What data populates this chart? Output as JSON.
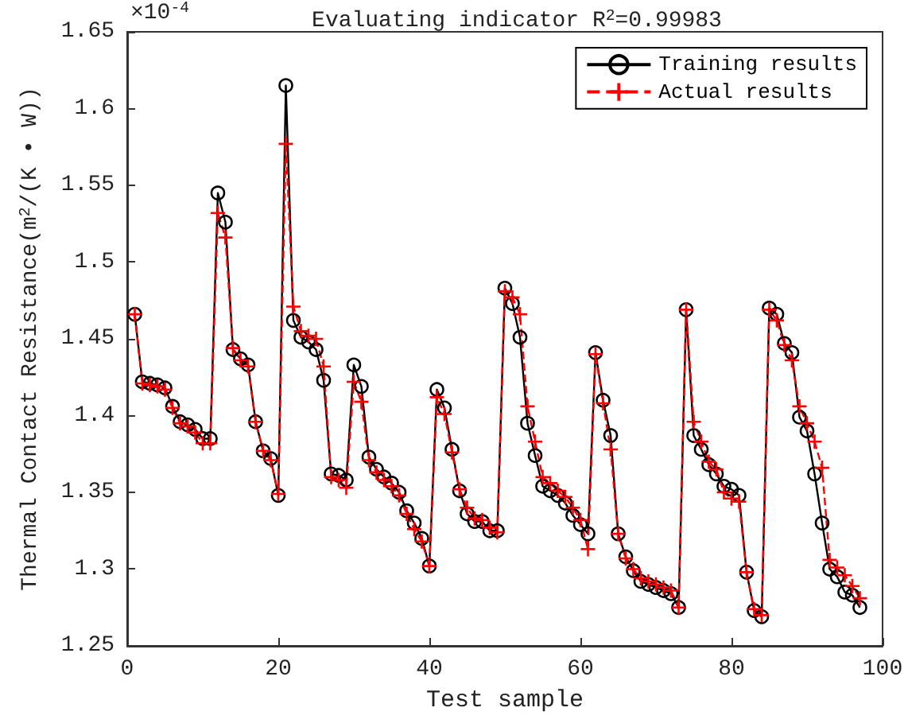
{
  "chart_data": {
    "type": "line",
    "title": "Evaluating indicator R$^{2}$=0.99983",
    "xlabel": "Test sample",
    "ylabel": "Thermal Contact Resistance(m$^{2}$/(K • W))",
    "annotations": [
      "×10$^{-4}$"
    ],
    "x": [
      1,
      2,
      3,
      4,
      5,
      6,
      7,
      8,
      9,
      10,
      11,
      12,
      13,
      14,
      15,
      16,
      17,
      18,
      19,
      20,
      21,
      22,
      23,
      24,
      25,
      26,
      27,
      28,
      29,
      30,
      31,
      32,
      33,
      34,
      35,
      36,
      37,
      38,
      39,
      40,
      41,
      42,
      43,
      44,
      45,
      46,
      47,
      48,
      49,
      50,
      51,
      52,
      53,
      54,
      55,
      56,
      57,
      58,
      59,
      60,
      61,
      62,
      63,
      64,
      65,
      66,
      67,
      68,
      69,
      70,
      71,
      72,
      73,
      74,
      75,
      76,
      77,
      78,
      79,
      80,
      81,
      82,
      83,
      84,
      85,
      86,
      87,
      88,
      89,
      90,
      91,
      92,
      93,
      94,
      95,
      96,
      97
    ],
    "series": [
      {
        "name": "Training results",
        "color": "#000000",
        "marker": "circle",
        "line_style": "solid",
        "values": [
          1.466,
          1.422,
          1.421,
          1.42,
          1.418,
          1.406,
          1.396,
          1.394,
          1.391,
          1.385,
          1.385,
          1.545,
          1.526,
          1.443,
          1.437,
          1.433,
          1.396,
          1.377,
          1.372,
          1.348,
          1.615,
          1.462,
          1.451,
          1.448,
          1.443,
          1.423,
          1.362,
          1.361,
          1.358,
          1.433,
          1.419,
          1.373,
          1.365,
          1.36,
          1.356,
          1.35,
          1.338,
          1.33,
          1.32,
          1.302,
          1.417,
          1.405,
          1.378,
          1.351,
          1.336,
          1.331,
          1.331,
          1.325,
          1.325,
          1.483,
          1.473,
          1.451,
          1.395,
          1.374,
          1.354,
          1.351,
          1.348,
          1.343,
          1.335,
          1.329,
          1.323,
          1.441,
          1.41,
          1.387,
          1.323,
          1.308,
          1.299,
          1.292,
          1.29,
          1.288,
          1.286,
          1.284,
          1.275,
          1.469,
          1.387,
          1.378,
          1.368,
          1.362,
          1.354,
          1.352,
          1.348,
          1.298,
          1.273,
          1.269,
          1.47,
          1.466,
          1.447,
          1.441,
          1.399,
          1.39,
          1.362,
          1.33,
          1.3,
          1.295,
          1.285,
          1.283,
          1.275
        ]
      },
      {
        "name": "Actual results",
        "color": "#ff0000",
        "marker": "cross",
        "line_style": "dashed",
        "values": [
          1.466,
          1.421,
          1.42,
          1.419,
          1.417,
          1.405,
          1.395,
          1.393,
          1.389,
          1.382,
          1.382,
          1.532,
          1.516,
          1.444,
          1.436,
          1.432,
          1.396,
          1.377,
          1.371,
          1.349,
          1.577,
          1.471,
          1.455,
          1.452,
          1.45,
          1.432,
          1.36,
          1.358,
          1.353,
          1.422,
          1.409,
          1.371,
          1.363,
          1.358,
          1.354,
          1.348,
          1.336,
          1.326,
          1.318,
          1.302,
          1.412,
          1.401,
          1.376,
          1.352,
          1.34,
          1.333,
          1.332,
          1.327,
          1.324,
          1.481,
          1.477,
          1.466,
          1.406,
          1.383,
          1.36,
          1.356,
          1.351,
          1.347,
          1.34,
          1.332,
          1.313,
          1.44,
          1.408,
          1.378,
          1.323,
          1.307,
          1.3,
          1.294,
          1.292,
          1.29,
          1.288,
          1.286,
          1.275,
          1.469,
          1.396,
          1.383,
          1.37,
          1.365,
          1.35,
          1.346,
          1.344,
          1.298,
          1.274,
          1.27,
          1.469,
          1.462,
          1.446,
          1.436,
          1.406,
          1.395,
          1.383,
          1.366,
          1.306,
          1.301,
          1.296,
          1.289,
          1.281
        ]
      }
    ],
    "xlim": [
      0,
      100
    ],
    "xticks": [
      0,
      20,
      40,
      60,
      80,
      100
    ],
    "ylim": [
      1.25,
      1.65
    ],
    "yticks": [
      1.25,
      1.3,
      1.35,
      1.4,
      1.45,
      1.5,
      1.55,
      1.6,
      1.65
    ],
    "grid": false,
    "legend": "top right"
  }
}
